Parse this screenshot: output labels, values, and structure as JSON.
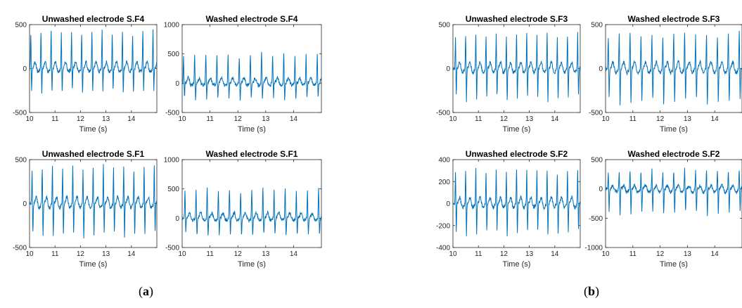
{
  "panel_labels": {
    "a": {
      "open": "(",
      "letter": "a",
      "close": ")"
    },
    "b": {
      "open": "(",
      "letter": "b",
      "close": ")"
    }
  },
  "colors": {
    "signal": "#0072BD",
    "axes": "#262626"
  },
  "chart_data": [
    {
      "type": "line",
      "group": "a",
      "title": "Unwashed electrode S.F4",
      "xlabel": "Time (s)",
      "xlim": [
        10,
        15
      ],
      "xticks": [
        10,
        11,
        12,
        13,
        14
      ],
      "ylim": [
        -500,
        500
      ],
      "yticks": [
        -500,
        0,
        500
      ],
      "grid": false,
      "spike_times": [
        10.05,
        10.45,
        10.85,
        11.25,
        11.65,
        12.05,
        12.45,
        12.85,
        13.25,
        13.65,
        14.05,
        14.45,
        14.85
      ],
      "spike_up": 450,
      "spike_down": -300,
      "baseline": 0
    },
    {
      "type": "line",
      "group": "a",
      "title": "Washed electrode S.F4",
      "xlabel": "Time (s)",
      "xlim": [
        10,
        15
      ],
      "xticks": [
        10,
        11,
        12,
        13,
        14
      ],
      "ylim": [
        -500,
        1000
      ],
      "yticks": [
        -500,
        0,
        500,
        1000
      ],
      "grid": false,
      "spike_times": [
        10.05,
        10.45,
        10.85,
        11.25,
        11.65,
        12.05,
        12.45,
        12.85,
        13.25,
        13.65,
        14.05,
        14.45,
        14.85
      ],
      "spike_up": 520,
      "spike_down": -300,
      "baseline": 0
    },
    {
      "type": "line",
      "group": "a",
      "title": "Unwashed electrode S.F1",
      "xlabel": "Time (s)",
      "xlim": [
        10,
        15
      ],
      "xticks": [
        10,
        11,
        12,
        13,
        14
      ],
      "ylim": [
        -500,
        500
      ],
      "yticks": [
        -500,
        0,
        500
      ],
      "grid": false,
      "spike_times": [
        10.1,
        10.5,
        10.9,
        11.3,
        11.7,
        12.1,
        12.5,
        12.9,
        13.3,
        13.7,
        14.1,
        14.5,
        14.9
      ],
      "spike_up": 450,
      "spike_down": -400,
      "baseline": 0
    },
    {
      "type": "line",
      "group": "a",
      "title": "Washed electrode S.F1",
      "xlabel": "Time (s)",
      "xlim": [
        10,
        15
      ],
      "xticks": [
        10,
        11,
        12,
        13,
        14
      ],
      "ylim": [
        -500,
        1000
      ],
      "yticks": [
        -500,
        0,
        500,
        1000
      ],
      "grid": false,
      "spike_times": [
        10.1,
        10.5,
        10.9,
        11.3,
        11.7,
        12.1,
        12.5,
        12.9,
        13.3,
        13.7,
        14.1,
        14.5,
        14.9
      ],
      "spike_up": 520,
      "spike_down": -320,
      "baseline": 0
    },
    {
      "type": "line",
      "group": "b",
      "title": "Unwashed electrode S.F3",
      "xlabel": "Time (s)",
      "xlim": [
        10,
        15
      ],
      "xticks": [
        10,
        11,
        12,
        13,
        14
      ],
      "ylim": [
        -500,
        500
      ],
      "yticks": [
        -500,
        0,
        500
      ],
      "grid": false,
      "spike_times": [
        10.1,
        10.5,
        10.9,
        11.3,
        11.7,
        12.1,
        12.5,
        12.9,
        13.3,
        13.7,
        14.1,
        14.5,
        14.9
      ],
      "spike_up": 420,
      "spike_down": -380,
      "baseline": 0
    },
    {
      "type": "line",
      "group": "b",
      "title": "Washed electrode S.F3",
      "xlabel": "Time (s)",
      "xlim": [
        10,
        15
      ],
      "xticks": [
        10,
        11,
        12,
        13,
        14
      ],
      "ylim": [
        -500,
        500
      ],
      "yticks": [
        -500,
        0,
        500
      ],
      "grid": false,
      "spike_times": [
        10.1,
        10.5,
        10.9,
        11.3,
        11.7,
        12.1,
        12.5,
        12.9,
        13.3,
        13.7,
        14.1,
        14.5,
        14.9
      ],
      "spike_up": 430,
      "spike_down": -420,
      "baseline": 0
    },
    {
      "type": "line",
      "group": "b",
      "title": "Unwashed electrode S.F2",
      "xlabel": "Time (s)",
      "xlim": [
        10,
        15
      ],
      "xticks": [
        10,
        11,
        12,
        13,
        14
      ],
      "ylim": [
        -400,
        400
      ],
      "yticks": [
        -400,
        -200,
        0,
        200,
        400
      ],
      "grid": false,
      "spike_times": [
        10.1,
        10.5,
        10.9,
        11.3,
        11.7,
        12.1,
        12.5,
        12.9,
        13.3,
        13.7,
        14.1,
        14.5,
        14.9
      ],
      "spike_up": 330,
      "spike_down": -300,
      "baseline": 0
    },
    {
      "type": "line",
      "group": "b",
      "title": "Washed electrode S.F2",
      "xlabel": "Time (s)",
      "xlim": [
        10,
        15
      ],
      "xticks": [
        10,
        11,
        12,
        13,
        14
      ],
      "ylim": [
        -1000,
        500
      ],
      "yticks": [
        -1000,
        -500,
        0,
        500
      ],
      "grid": false,
      "spike_times": [
        10.1,
        10.5,
        10.9,
        11.3,
        11.7,
        12.1,
        12.5,
        12.9,
        13.3,
        13.7,
        14.1,
        14.5,
        14.9
      ],
      "spike_up": 350,
      "spike_down": -450,
      "baseline": 0
    }
  ]
}
